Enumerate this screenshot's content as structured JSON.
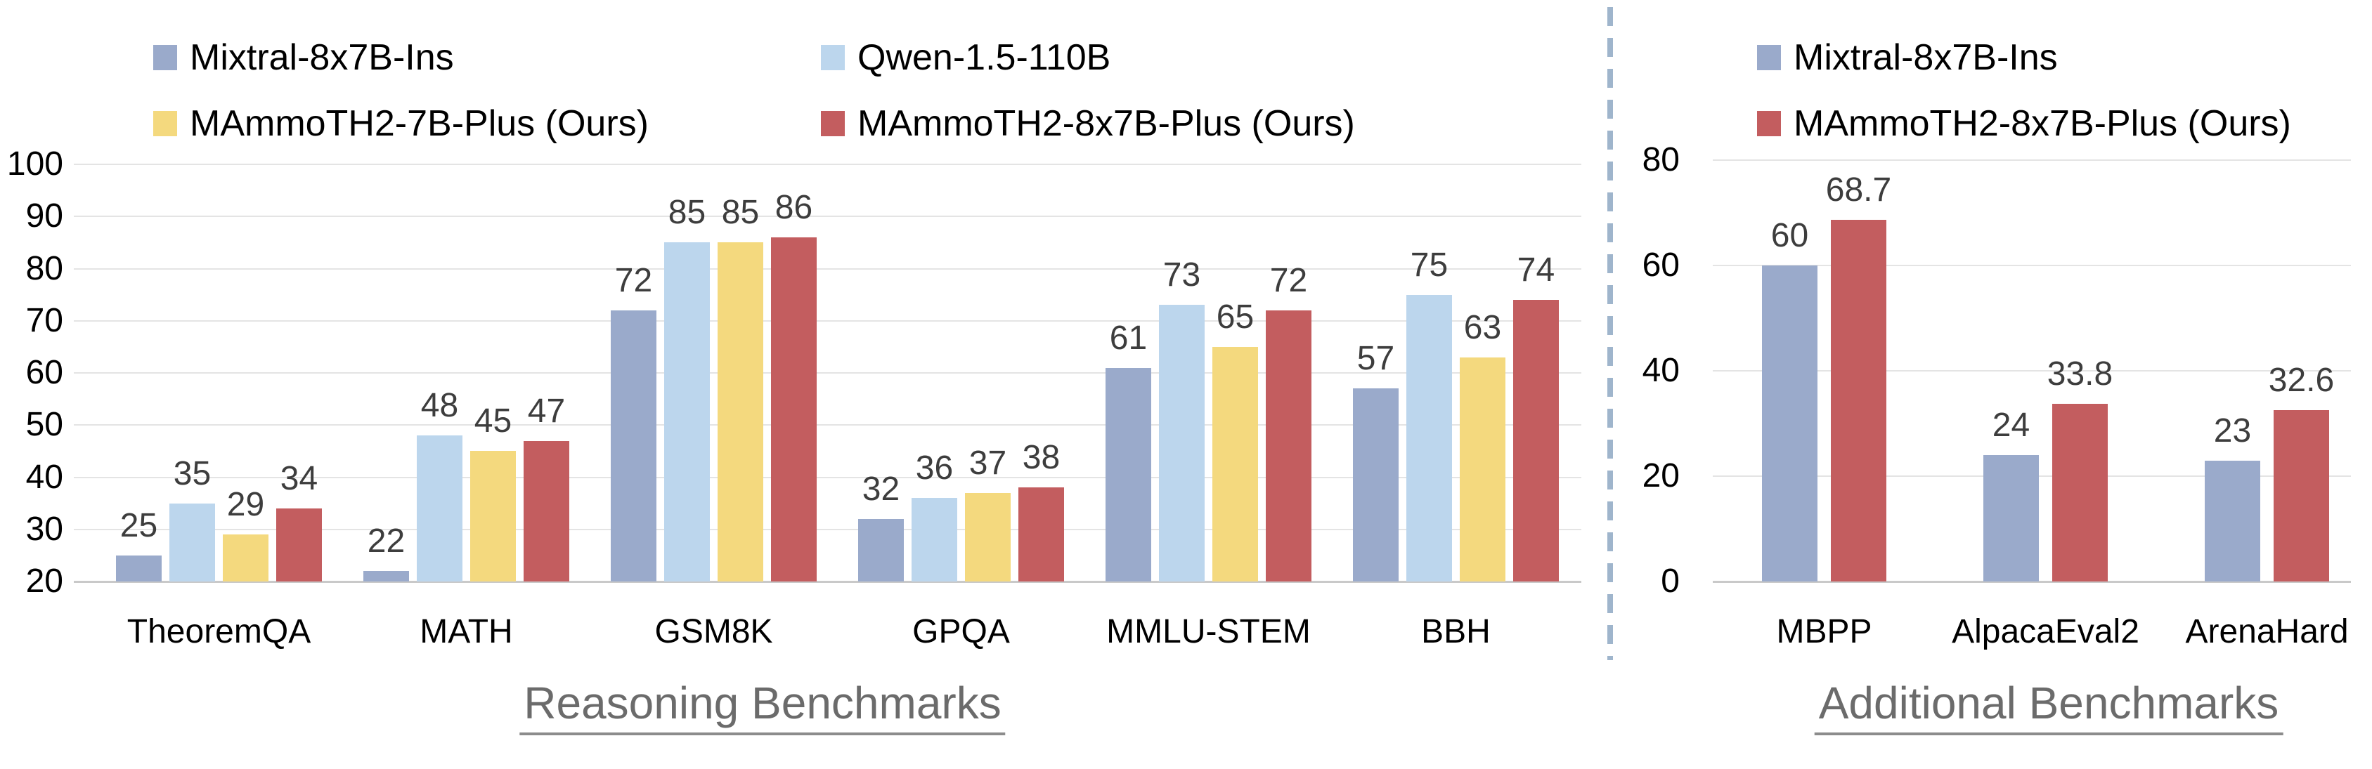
{
  "chart_data": [
    {
      "type": "bar",
      "title": "Reasoning Benchmarks",
      "categories": [
        "TheoremQA",
        "MATH",
        "GSM8K",
        "GPQA",
        "MMLU-STEM",
        "BBH"
      ],
      "series": [
        {
          "name": "Mixtral-8x7B-Ins",
          "color": "#9AAACB",
          "values": [
            25,
            22,
            72,
            32,
            61,
            57
          ]
        },
        {
          "name": "Qwen-1.5-110B",
          "color": "#BCD6ED",
          "values": [
            35,
            48,
            85,
            36,
            73,
            75
          ]
        },
        {
          "name": "MAmmoTH2-7B-Plus (Ours)",
          "color": "#F4D97E",
          "values": [
            29,
            45,
            85,
            37,
            65,
            63
          ]
        },
        {
          "name": "MAmmoTH2-8x7B-Plus (Ours)",
          "color": "#C35D5F",
          "values": [
            34,
            47,
            86,
            38,
            72,
            74
          ]
        }
      ],
      "xlabel": "",
      "ylabel": "",
      "ylim": [
        20,
        100
      ],
      "ytick_step": 10,
      "grid": true,
      "legend_position": "top"
    },
    {
      "type": "bar",
      "title": "Additional Benchmarks",
      "categories": [
        "MBPP",
        "AlpacaEval2",
        "ArenaHard"
      ],
      "series": [
        {
          "name": "Mixtral-8x7B-Ins",
          "color": "#9AAACB",
          "values": [
            60,
            24,
            23
          ]
        },
        {
          "name": "MAmmoTH2-8x7B-Plus (Ours)",
          "color": "#C35D5F",
          "values": [
            68.7,
            33.8,
            32.6
          ]
        }
      ],
      "xlabel": "",
      "ylabel": "",
      "ylim": [
        0,
        80
      ],
      "ytick_step": 20,
      "grid": true,
      "legend_position": "top"
    }
  ],
  "styles": {
    "background": "#FFFFFF",
    "grid_color": "#E4E4E4",
    "axis_line_color": "#C9C9C9",
    "divider_color": "#9FB5CC",
    "title_color": "#6B6B6B",
    "value_label_color": "#3D3D3D",
    "text_color": "#000000"
  }
}
